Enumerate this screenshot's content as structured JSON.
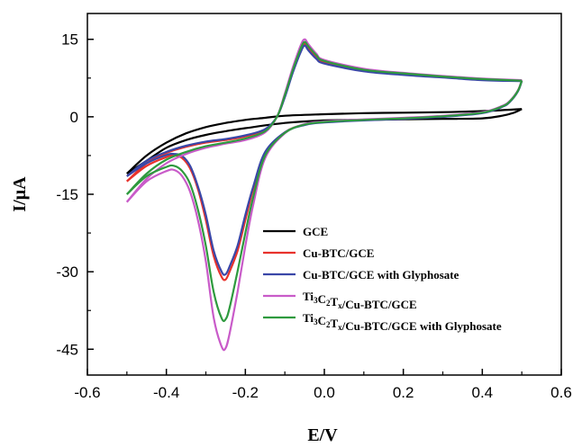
{
  "chart_data": {
    "type": "line",
    "xlabel": "E/V",
    "ylabel": "I/μA",
    "xlim": [
      -0.6,
      0.6
    ],
    "ylim": [
      -50,
      20
    ],
    "x_ticks": [
      -0.6,
      -0.4,
      -0.2,
      0.0,
      0.2,
      0.4,
      0.6
    ],
    "x_tick_labels": [
      "-0.6",
      "-0.4",
      "-0.2",
      "0.0",
      "0.2",
      "0.4",
      "0.6"
    ],
    "y_ticks": [
      15,
      0,
      -15,
      -30,
      -45
    ],
    "y_tick_labels": [
      "15",
      "0",
      "-15",
      "-30",
      "-45"
    ],
    "grid": false,
    "legend_position": "lower-right",
    "series": [
      {
        "name": "GCE",
        "color": "#000000",
        "forward": [
          [
            -0.5,
            -11
          ],
          [
            -0.45,
            -7.5
          ],
          [
            -0.4,
            -5
          ],
          [
            -0.35,
            -3.2
          ],
          [
            -0.3,
            -2
          ],
          [
            -0.25,
            -1.2
          ],
          [
            -0.2,
            -0.6
          ],
          [
            -0.15,
            -0.2
          ],
          [
            -0.1,
            0.2
          ],
          [
            0,
            0.5
          ],
          [
            0.1,
            0.7
          ],
          [
            0.2,
            0.8
          ],
          [
            0.3,
            0.9
          ],
          [
            0.4,
            1.1
          ],
          [
            0.5,
            1.5
          ]
        ],
        "reverse": [
          [
            0.5,
            1.5
          ],
          [
            0.48,
            0.8
          ],
          [
            0.45,
            0.2
          ],
          [
            0.4,
            -0.3
          ],
          [
            0.3,
            -0.4
          ],
          [
            0.2,
            -0.5
          ],
          [
            0.1,
            -0.6
          ],
          [
            0,
            -0.7
          ],
          [
            -0.1,
            -1.2
          ],
          [
            -0.2,
            -2.2
          ],
          [
            -0.25,
            -2.8
          ],
          [
            -0.3,
            -3.5
          ],
          [
            -0.35,
            -4.5
          ],
          [
            -0.4,
            -6
          ],
          [
            -0.45,
            -8.5
          ],
          [
            -0.5,
            -11
          ]
        ]
      },
      {
        "name": "Cu-BTC/GCE",
        "color": "#e8322c",
        "forward": [
          [
            -0.5,
            -12.5
          ],
          [
            -0.45,
            -9
          ],
          [
            -0.4,
            -7
          ],
          [
            -0.35,
            -5.8
          ],
          [
            -0.3,
            -5
          ],
          [
            -0.25,
            -4.5
          ],
          [
            -0.2,
            -3.8
          ],
          [
            -0.15,
            -2.5
          ],
          [
            -0.12,
            0
          ],
          [
            -0.1,
            4
          ],
          [
            -0.08,
            9
          ],
          [
            -0.06,
            13
          ],
          [
            -0.05,
            14.2
          ],
          [
            -0.04,
            13.2
          ],
          [
            -0.02,
            11.5
          ],
          [
            0,
            10.5
          ],
          [
            0.1,
            9
          ],
          [
            0.2,
            8.3
          ],
          [
            0.3,
            7.8
          ],
          [
            0.4,
            7.3
          ],
          [
            0.5,
            7
          ]
        ],
        "reverse": [
          [
            0.5,
            7
          ],
          [
            0.49,
            5
          ],
          [
            0.47,
            3
          ],
          [
            0.45,
            2
          ],
          [
            0.4,
            0.8
          ],
          [
            0.3,
            0.1
          ],
          [
            0.2,
            -0.3
          ],
          [
            0.1,
            -0.6
          ],
          [
            0,
            -1
          ],
          [
            -0.05,
            -1.5
          ],
          [
            -0.1,
            -3
          ],
          [
            -0.15,
            -7
          ],
          [
            -0.18,
            -14
          ],
          [
            -0.2,
            -20
          ],
          [
            -0.22,
            -26
          ],
          [
            -0.24,
            -30
          ],
          [
            -0.25,
            -31.5
          ],
          [
            -0.26,
            -31
          ],
          [
            -0.28,
            -27
          ],
          [
            -0.3,
            -20
          ],
          [
            -0.32,
            -14
          ],
          [
            -0.34,
            -10
          ],
          [
            -0.36,
            -8
          ],
          [
            -0.38,
            -7.5
          ],
          [
            -0.4,
            -7.8
          ],
          [
            -0.45,
            -9.5
          ],
          [
            -0.5,
            -12.5
          ]
        ]
      },
      {
        "name": "Cu-BTC/GCE with Glyphosate",
        "color": "#3a47a8",
        "forward": [
          [
            -0.5,
            -11.5
          ],
          [
            -0.45,
            -8.5
          ],
          [
            -0.4,
            -6.8
          ],
          [
            -0.35,
            -5.6
          ],
          [
            -0.3,
            -4.8
          ],
          [
            -0.25,
            -4.3
          ],
          [
            -0.2,
            -3.6
          ],
          [
            -0.15,
            -2.4
          ],
          [
            -0.12,
            0
          ],
          [
            -0.1,
            3.8
          ],
          [
            -0.08,
            8.5
          ],
          [
            -0.06,
            12.5
          ],
          [
            -0.05,
            13.8
          ],
          [
            -0.04,
            12.8
          ],
          [
            -0.02,
            11.2
          ],
          [
            0,
            10.3
          ],
          [
            0.1,
            8.8
          ],
          [
            0.2,
            8.1
          ],
          [
            0.3,
            7.6
          ],
          [
            0.4,
            7.1
          ],
          [
            0.5,
            6.9
          ]
        ],
        "reverse": [
          [
            0.5,
            6.9
          ],
          [
            0.49,
            4.9
          ],
          [
            0.47,
            2.9
          ],
          [
            0.45,
            1.9
          ],
          [
            0.4,
            0.7
          ],
          [
            0.3,
            0
          ],
          [
            0.2,
            -0.4
          ],
          [
            0.1,
            -0.7
          ],
          [
            0,
            -1.1
          ],
          [
            -0.05,
            -1.6
          ],
          [
            -0.1,
            -3
          ],
          [
            -0.15,
            -6.8
          ],
          [
            -0.18,
            -13.5
          ],
          [
            -0.2,
            -19
          ],
          [
            -0.22,
            -25
          ],
          [
            -0.24,
            -29
          ],
          [
            -0.25,
            -30.5
          ],
          [
            -0.26,
            -30
          ],
          [
            -0.28,
            -26
          ],
          [
            -0.3,
            -19
          ],
          [
            -0.32,
            -13.5
          ],
          [
            -0.34,
            -9.5
          ],
          [
            -0.36,
            -7.6
          ],
          [
            -0.38,
            -7.2
          ],
          [
            -0.4,
            -7.4
          ],
          [
            -0.45,
            -9
          ],
          [
            -0.5,
            -11.5
          ]
        ]
      },
      {
        "name": "Ti3C2Tx/Cu-BTC/GCE",
        "color": "#c95bc9",
        "forward": [
          [
            -0.5,
            -16.5
          ],
          [
            -0.45,
            -12
          ],
          [
            -0.4,
            -9
          ],
          [
            -0.35,
            -7.2
          ],
          [
            -0.3,
            -6
          ],
          [
            -0.25,
            -5.2
          ],
          [
            -0.2,
            -4.5
          ],
          [
            -0.15,
            -3
          ],
          [
            -0.12,
            0
          ],
          [
            -0.1,
            4.5
          ],
          [
            -0.08,
            9.5
          ],
          [
            -0.06,
            13.8
          ],
          [
            -0.05,
            15
          ],
          [
            -0.04,
            14
          ],
          [
            -0.02,
            12.2
          ],
          [
            0,
            11
          ],
          [
            0.1,
            9.3
          ],
          [
            0.2,
            8.5
          ],
          [
            0.3,
            7.9
          ],
          [
            0.4,
            7.4
          ],
          [
            0.5,
            7.1
          ]
        ],
        "reverse": [
          [
            0.5,
            7.1
          ],
          [
            0.49,
            5.1
          ],
          [
            0.47,
            3.1
          ],
          [
            0.45,
            2.1
          ],
          [
            0.4,
            0.9
          ],
          [
            0.3,
            0.2
          ],
          [
            0.2,
            -0.2
          ],
          [
            0.1,
            -0.5
          ],
          [
            0,
            -0.9
          ],
          [
            -0.05,
            -1.4
          ],
          [
            -0.1,
            -3.2
          ],
          [
            -0.15,
            -8
          ],
          [
            -0.18,
            -17
          ],
          [
            -0.2,
            -25
          ],
          [
            -0.22,
            -34
          ],
          [
            -0.24,
            -42
          ],
          [
            -0.25,
            -44.8
          ],
          [
            -0.26,
            -44.5
          ],
          [
            -0.28,
            -39
          ],
          [
            -0.3,
            -28
          ],
          [
            -0.32,
            -20
          ],
          [
            -0.34,
            -14.5
          ],
          [
            -0.36,
            -11.5
          ],
          [
            -0.38,
            -10.3
          ],
          [
            -0.4,
            -10.5
          ],
          [
            -0.45,
            -12.5
          ],
          [
            -0.5,
            -16.5
          ]
        ]
      },
      {
        "name": "Ti3C2Tx/Cu-BTC/GCE with Glyphosate",
        "color": "#2e9a3e",
        "forward": [
          [
            -0.5,
            -15
          ],
          [
            -0.45,
            -11
          ],
          [
            -0.4,
            -8.3
          ],
          [
            -0.35,
            -6.8
          ],
          [
            -0.3,
            -5.7
          ],
          [
            -0.25,
            -5
          ],
          [
            -0.2,
            -4.2
          ],
          [
            -0.15,
            -2.8
          ],
          [
            -0.12,
            0
          ],
          [
            -0.1,
            4.2
          ],
          [
            -0.08,
            9
          ],
          [
            -0.06,
            13.2
          ],
          [
            -0.05,
            14.5
          ],
          [
            -0.04,
            13.6
          ],
          [
            -0.02,
            11.9
          ],
          [
            0,
            10.8
          ],
          [
            0.1,
            9.1
          ],
          [
            0.2,
            8.4
          ],
          [
            0.3,
            7.8
          ],
          [
            0.4,
            7.3
          ],
          [
            0.5,
            7
          ]
        ],
        "reverse": [
          [
            0.5,
            7
          ],
          [
            0.49,
            5
          ],
          [
            0.47,
            3
          ],
          [
            0.45,
            2
          ],
          [
            0.4,
            0.8
          ],
          [
            0.3,
            0.1
          ],
          [
            0.2,
            -0.3
          ],
          [
            0.1,
            -0.6
          ],
          [
            0,
            -1
          ],
          [
            -0.05,
            -1.5
          ],
          [
            -0.1,
            -3.1
          ],
          [
            -0.15,
            -7.5
          ],
          [
            -0.18,
            -15.5
          ],
          [
            -0.2,
            -22.5
          ],
          [
            -0.22,
            -30
          ],
          [
            -0.24,
            -37
          ],
          [
            -0.25,
            -39.2
          ],
          [
            -0.26,
            -39
          ],
          [
            -0.28,
            -34
          ],
          [
            -0.3,
            -25
          ],
          [
            -0.32,
            -18
          ],
          [
            -0.34,
            -13
          ],
          [
            -0.36,
            -10.5
          ],
          [
            -0.38,
            -9.5
          ],
          [
            -0.4,
            -9.7
          ],
          [
            -0.45,
            -11.5
          ],
          [
            -0.5,
            -15
          ]
        ]
      }
    ]
  }
}
